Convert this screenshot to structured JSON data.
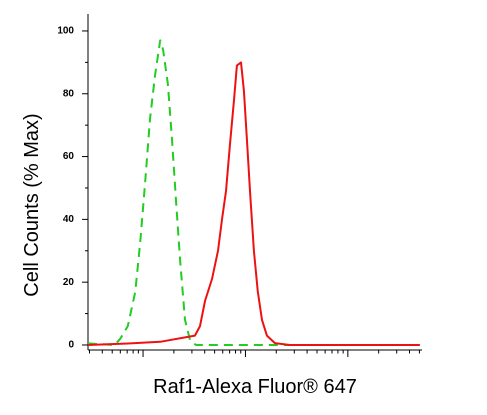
{
  "chart_data": {
    "type": "line",
    "x_label": "Raf1-Alexa Fluor® 647",
    "y_label": "Cell Counts (% Max)",
    "xscale": "log",
    "xlim": [
      2.9,
      5300
    ],
    "xticks": [
      10,
      100,
      1000
    ],
    "ylim": [
      -1.6,
      105.4
    ],
    "yticks": [
      0,
      20,
      40,
      60,
      80,
      100
    ],
    "series": [
      {
        "color": "#22cc22",
        "dash": true,
        "x": [
          2.9,
          5.3,
          6.0,
          7.1,
          8.4,
          9.4,
          10.5,
          11.7,
          13.1,
          14.7,
          15.7,
          17.5,
          19.2,
          21.0,
          23.0,
          25.7,
          28.8,
          32.9,
          5040
        ],
        "values": [
          0.5,
          0,
          2,
          6,
          17,
          33,
          52,
          72,
          86,
          97,
          94,
          83,
          65,
          46,
          27,
          8,
          1.5,
          0,
          0
        ]
      },
      {
        "color": "#ee1111",
        "dash": false,
        "x": [
          2.9,
          7.5,
          14.7,
          32.1,
          36.0,
          40.3,
          47.1,
          53.9,
          59.0,
          64.6,
          70.6,
          77.3,
          82.6,
          90.4,
          96.6,
          103.5,
          110.7,
          121,
          132,
          145,
          162,
          194,
          272,
          5040
        ],
        "values": [
          0,
          0.5,
          1,
          3,
          6,
          14,
          21,
          30,
          40,
          49,
          64,
          78,
          89,
          90,
          81,
          65,
          49,
          30,
          17,
          8,
          3,
          0.6,
          0,
          0
        ]
      }
    ]
  }
}
